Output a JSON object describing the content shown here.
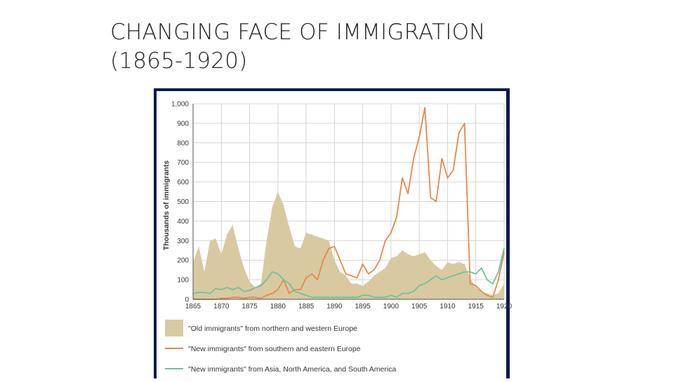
{
  "slide": {
    "title_line1": "CHANGING FACE OF IMMIGRATION",
    "title_line2": "(1865-1920)"
  },
  "chart_data": {
    "type": "area",
    "ylabel": "Thousands of immigrants",
    "xlim": [
      1865,
      1920
    ],
    "ylim": [
      0,
      1000
    ],
    "x_ticks": [
      "1865",
      "1870",
      "1875",
      "1880",
      "1885",
      "1890",
      "1895",
      "1900",
      "1905",
      "1910",
      "1915",
      "1920"
    ],
    "y_ticks": [
      "0",
      "100",
      "200",
      "300",
      "400",
      "500",
      "600",
      "700",
      "800",
      "900",
      "1,000"
    ],
    "grid": true,
    "colors": {
      "old": "#d8c9a0",
      "new_europe": "#e8884a",
      "new_other": "#6cc39a",
      "grid": "#d4d4d4",
      "frame": "#0c1a4a"
    },
    "series": [
      {
        "key": "old",
        "name": "\"Old immigrants\" from northern and western Europe",
        "style": "area",
        "x": [
          1865,
          1866,
          1867,
          1868,
          1869,
          1870,
          1871,
          1872,
          1873,
          1874,
          1875,
          1876,
          1877,
          1878,
          1879,
          1880,
          1881,
          1882,
          1883,
          1884,
          1885,
          1886,
          1887,
          1888,
          1889,
          1890,
          1891,
          1892,
          1893,
          1894,
          1895,
          1896,
          1897,
          1898,
          1899,
          1900,
          1901,
          1902,
          1903,
          1904,
          1905,
          1906,
          1907,
          1908,
          1909,
          1910,
          1911,
          1912,
          1913,
          1914,
          1915,
          1916,
          1917,
          1918,
          1919,
          1920
        ],
        "values": [
          190,
          270,
          140,
          300,
          310,
          230,
          330,
          380,
          260,
          160,
          90,
          60,
          80,
          300,
          470,
          550,
          480,
          370,
          270,
          260,
          340,
          330,
          320,
          310,
          300,
          200,
          140,
          120,
          80,
          80,
          70,
          90,
          120,
          140,
          160,
          210,
          220,
          250,
          230,
          220,
          230,
          240,
          200,
          170,
          150,
          190,
          180,
          190,
          180,
          110,
          60,
          40,
          30,
          20,
          30,
          80
        ]
      },
      {
        "key": "new_europe",
        "name": "\"New immigrants\" from southern and eastern Europe",
        "style": "line",
        "x": [
          1865,
          1866,
          1867,
          1868,
          1869,
          1870,
          1871,
          1872,
          1873,
          1874,
          1875,
          1876,
          1877,
          1878,
          1879,
          1880,
          1881,
          1882,
          1883,
          1884,
          1885,
          1886,
          1887,
          1888,
          1889,
          1890,
          1891,
          1892,
          1893,
          1894,
          1895,
          1896,
          1897,
          1898,
          1899,
          1900,
          1901,
          1902,
          1903,
          1904,
          1905,
          1906,
          1907,
          1908,
          1909,
          1910,
          1911,
          1912,
          1913,
          1914,
          1915,
          1916,
          1917,
          1918,
          1919,
          1920
        ],
        "values": [
          0,
          0,
          0,
          0,
          0,
          5,
          5,
          10,
          10,
          5,
          10,
          10,
          5,
          20,
          30,
          50,
          100,
          30,
          50,
          50,
          110,
          130,
          100,
          200,
          260,
          270,
          200,
          130,
          120,
          110,
          180,
          130,
          150,
          200,
          300,
          340,
          420,
          620,
          540,
          720,
          830,
          980,
          520,
          500,
          720,
          620,
          660,
          850,
          900,
          80,
          70,
          40,
          20,
          10,
          100,
          240
        ]
      },
      {
        "key": "new_other",
        "name": "\"New immigrants\" from Asia, North America, and South America",
        "style": "line",
        "x": [
          1865,
          1866,
          1867,
          1868,
          1869,
          1870,
          1871,
          1872,
          1873,
          1874,
          1875,
          1876,
          1877,
          1878,
          1879,
          1880,
          1881,
          1882,
          1883,
          1884,
          1885,
          1886,
          1887,
          1888,
          1889,
          1890,
          1891,
          1892,
          1893,
          1894,
          1895,
          1896,
          1897,
          1898,
          1899,
          1900,
          1901,
          1902,
          1903,
          1904,
          1905,
          1906,
          1907,
          1908,
          1909,
          1910,
          1911,
          1912,
          1913,
          1914,
          1915,
          1916,
          1917,
          1918,
          1919,
          1920
        ],
        "values": [
          30,
          35,
          35,
          30,
          55,
          50,
          60,
          50,
          60,
          40,
          45,
          60,
          70,
          100,
          140,
          130,
          100,
          80,
          40,
          30,
          20,
          10,
          10,
          10,
          10,
          10,
          10,
          10,
          10,
          10,
          20,
          20,
          10,
          10,
          10,
          20,
          10,
          30,
          30,
          40,
          70,
          80,
          100,
          120,
          100,
          110,
          120,
          130,
          140,
          140,
          130,
          160,
          100,
          80,
          140,
          260
        ]
      }
    ]
  }
}
